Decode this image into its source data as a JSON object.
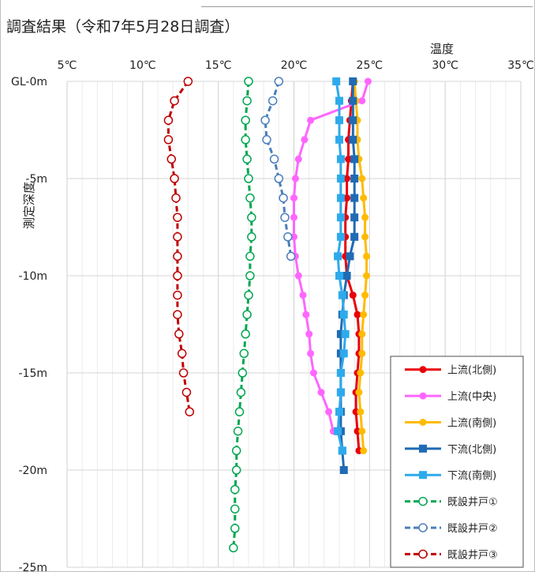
{
  "chart_data": {
    "type": "line",
    "title": "調査結果（令和7年5月28日調査）",
    "xlabel": "温度",
    "ylabel": "測定深度",
    "xlim": [
      5,
      35
    ],
    "ylim": [
      -25,
      0
    ],
    "x_ticks": [
      "5℃",
      "10℃",
      "15℃",
      "20℃",
      "25℃",
      "30℃",
      "35℃"
    ],
    "y_ticks": [
      "GL-0m",
      "-5m",
      "-10m",
      "-15m",
      "-20m",
      "-25m"
    ],
    "grid": true,
    "legend_position": "bottom-right",
    "series": [
      {
        "name": "上流(北側)",
        "color": "#e8000b",
        "marker": "circle-filled",
        "line": "solid",
        "x": [
          23.9,
          23.8,
          23.7,
          23.6,
          23.6,
          23.5,
          23.5,
          23.4,
          23.4,
          23.4,
          23.5,
          23.9,
          24.2,
          24.3,
          24.3,
          24.2,
          24.1,
          24.1,
          24.2,
          24.3
        ],
        "y": [
          0,
          -1,
          -2,
          -3,
          -4,
          -5,
          -6,
          -7,
          -8,
          -9,
          -10,
          -11,
          -12,
          -13,
          -14,
          -15,
          -16,
          -17,
          -18,
          -19
        ]
      },
      {
        "name": "上流(中央)",
        "color": "#ff66ff",
        "marker": "circle-filled",
        "line": "solid",
        "x": [
          24.9,
          24.5,
          21.1,
          20.7,
          20.3,
          20.1,
          20.0,
          20.0,
          20.0,
          20.1,
          20.3,
          20.6,
          20.8,
          21.0,
          21.1,
          21.3,
          21.8,
          22.3,
          22.6
        ],
        "y": [
          0,
          -1,
          -2,
          -3,
          -4,
          -5,
          -6,
          -7,
          -8,
          -9,
          -10,
          -11,
          -12,
          -13,
          -14,
          -15,
          -16,
          -17,
          -18
        ]
      },
      {
        "name": "上流(南側)",
        "color": "#ffbb00",
        "marker": "circle-filled",
        "line": "solid",
        "x": [
          24.0,
          24.1,
          24.2,
          24.2,
          24.3,
          24.5,
          24.6,
          24.7,
          24.7,
          24.8,
          24.8,
          24.7,
          24.6,
          24.5,
          24.5,
          24.4,
          24.3,
          24.4,
          24.5,
          24.6
        ],
        "y": [
          0,
          -1,
          -2,
          -3,
          -4,
          -5,
          -6,
          -7,
          -8,
          -9,
          -10,
          -11,
          -12,
          -13,
          -14,
          -15,
          -16,
          -17,
          -18,
          -19
        ]
      },
      {
        "name": "下流(北側)",
        "color": "#1f6bb4",
        "marker": "square-filled",
        "line": "solid",
        "x": [
          23.9,
          23.9,
          23.9,
          23.9,
          24.0,
          24.0,
          24.0,
          24.0,
          24.0,
          23.7,
          23.5,
          23.3,
          23.2,
          23.1,
          23.1,
          23.1,
          23.1,
          23.1,
          23.1,
          23.2,
          23.3
        ],
        "y": [
          0,
          -1,
          -2,
          -3,
          -4,
          -5,
          -6,
          -7,
          -8,
          -9,
          -10,
          -11,
          -12,
          -13,
          -14,
          -15,
          -16,
          -17,
          -18,
          -19,
          -20
        ]
      },
      {
        "name": "下流(南側)",
        "color": "#2eaaec",
        "marker": "square-filled",
        "line": "solid",
        "x": [
          22.8,
          23.0,
          23.0,
          23.0,
          23.1,
          23.1,
          23.1,
          23.1,
          23.1,
          22.9,
          23.0,
          23.2,
          23.3,
          23.4,
          23.3,
          23.1,
          23.1,
          23.0,
          22.9,
          23.2
        ],
        "y": [
          0,
          -1,
          -2,
          -3,
          -4,
          -5,
          -6,
          -7,
          -8,
          -9,
          -10,
          -11,
          -12,
          -13,
          -14,
          -15,
          -16,
          -17,
          -18,
          -19
        ]
      },
      {
        "name": "既設井戸①",
        "color": "#00a651",
        "marker": "circle-open",
        "line": "dashed",
        "x": [
          17.0,
          16.9,
          16.8,
          16.8,
          16.9,
          17.0,
          17.1,
          17.2,
          17.2,
          17.1,
          17.1,
          17.0,
          16.9,
          16.8,
          16.7,
          16.6,
          16.5,
          16.4,
          16.3,
          16.2,
          16.2,
          16.1,
          16.1,
          16.1,
          16.0
        ],
        "y": [
          0,
          -1,
          -2,
          -3,
          -4,
          -5,
          -6,
          -7,
          -8,
          -9,
          -10,
          -11,
          -12,
          -13,
          -14,
          -15,
          -16,
          -17,
          -18,
          -19,
          -20,
          -21,
          -22,
          -23,
          -24
        ]
      },
      {
        "name": "既設井戸②",
        "color": "#4a7ebb",
        "marker": "circle-open",
        "line": "dashed",
        "x": [
          19.0,
          18.6,
          18.1,
          18.2,
          18.7,
          19.0,
          19.3,
          19.4,
          19.6,
          19.8
        ],
        "y": [
          0,
          -1,
          -2,
          -3,
          -4,
          -5,
          -6,
          -7,
          -8,
          -9
        ]
      },
      {
        "name": "既設井戸③",
        "color": "#c00000",
        "marker": "circle-open",
        "line": "dashed",
        "x": [
          13.0,
          12.1,
          11.7,
          11.7,
          11.9,
          12.1,
          12.2,
          12.3,
          12.3,
          12.3,
          12.3,
          12.3,
          12.3,
          12.4,
          12.6,
          12.7,
          12.9,
          13.1
        ],
        "y": [
          0,
          -1,
          -2,
          -3,
          -4,
          -5,
          -6,
          -7,
          -8,
          -9,
          -10,
          -11,
          -12,
          -13,
          -14,
          -15,
          -16,
          -17
        ]
      }
    ]
  }
}
